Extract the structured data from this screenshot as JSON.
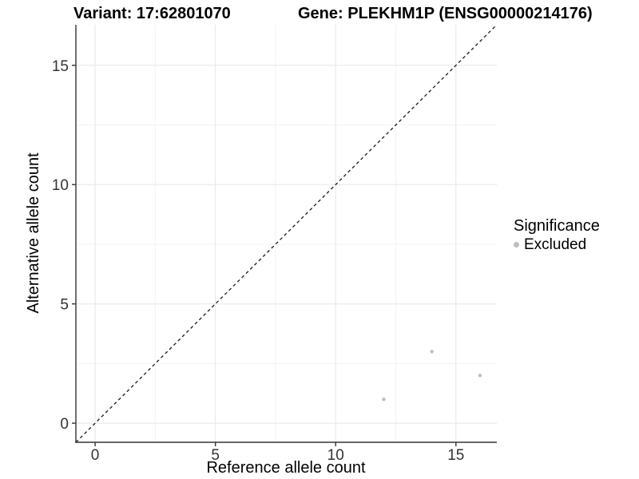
{
  "titles": {
    "variant": "Variant: 17:62801070",
    "gene": "Gene: PLEKHM1P (ENSG00000214176)"
  },
  "legend": {
    "title": "Significance",
    "items": [
      {
        "label": "Excluded",
        "color": "#bebebe"
      }
    ]
  },
  "colors": {
    "point": "#bebebe",
    "grid_major": "#e8e8e8",
    "grid_minor": "#f3f3f3",
    "axis_line": "#333333",
    "reference_line": "#1a1a1a"
  },
  "chart_data": {
    "type": "scatter",
    "xlabel": "Reference allele count",
    "ylabel": "Alternative allele count",
    "xlim": [
      -0.8,
      16.7
    ],
    "ylim": [
      -0.8,
      16.7
    ],
    "x_ticks": [
      0,
      5,
      10,
      15
    ],
    "y_ticks": [
      0,
      5,
      10,
      15
    ],
    "x_minor_ticks": [
      2.5,
      7.5,
      12.5
    ],
    "y_minor_ticks": [
      2.5,
      7.5,
      12.5
    ],
    "grid": true,
    "legend_position": "right",
    "series": [
      {
        "name": "Excluded",
        "color": "#bebebe",
        "points": [
          [
            12,
            1
          ],
          [
            14,
            3
          ],
          [
            16,
            2
          ]
        ]
      }
    ],
    "reference_line": {
      "kind": "identity",
      "slope": 1,
      "intercept": 0,
      "style": "dashed"
    }
  }
}
